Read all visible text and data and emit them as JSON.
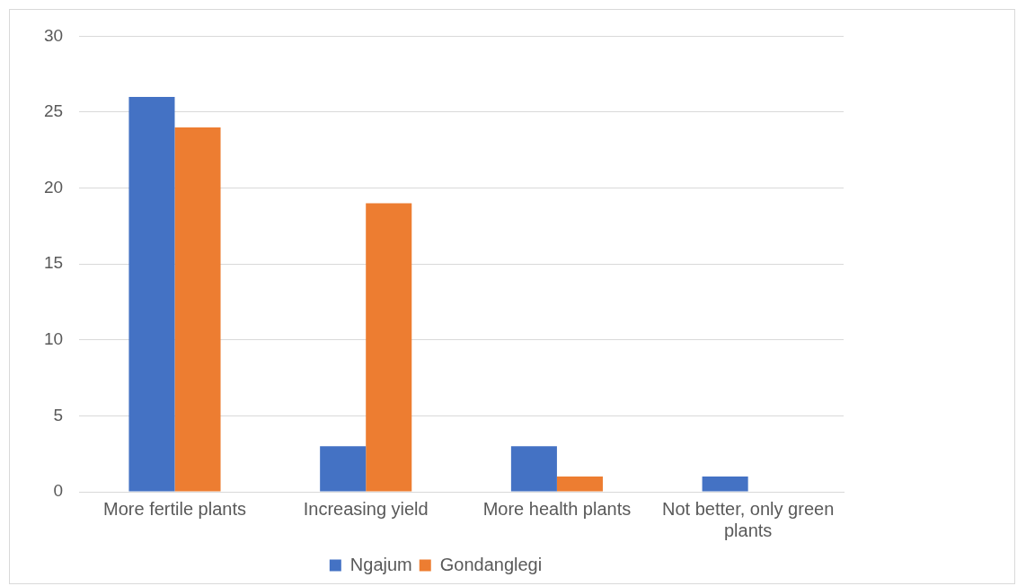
{
  "chart_data": {
    "type": "bar",
    "categories": [
      "More fertile plants",
      "Increasing yield",
      "More health plants",
      "Not better, only green plants"
    ],
    "series": [
      {
        "name": "Ngajum",
        "color": "#4472c4",
        "values": [
          26,
          3,
          3,
          1
        ]
      },
      {
        "name": "Gondanglegi",
        "color": "#ed7d31",
        "values": [
          24,
          19,
          1,
          0
        ]
      }
    ],
    "ylim": [
      0,
      30
    ],
    "yticks": [
      0,
      5,
      10,
      15,
      20,
      25,
      30
    ],
    "grid": "y",
    "legend": "bottom"
  }
}
